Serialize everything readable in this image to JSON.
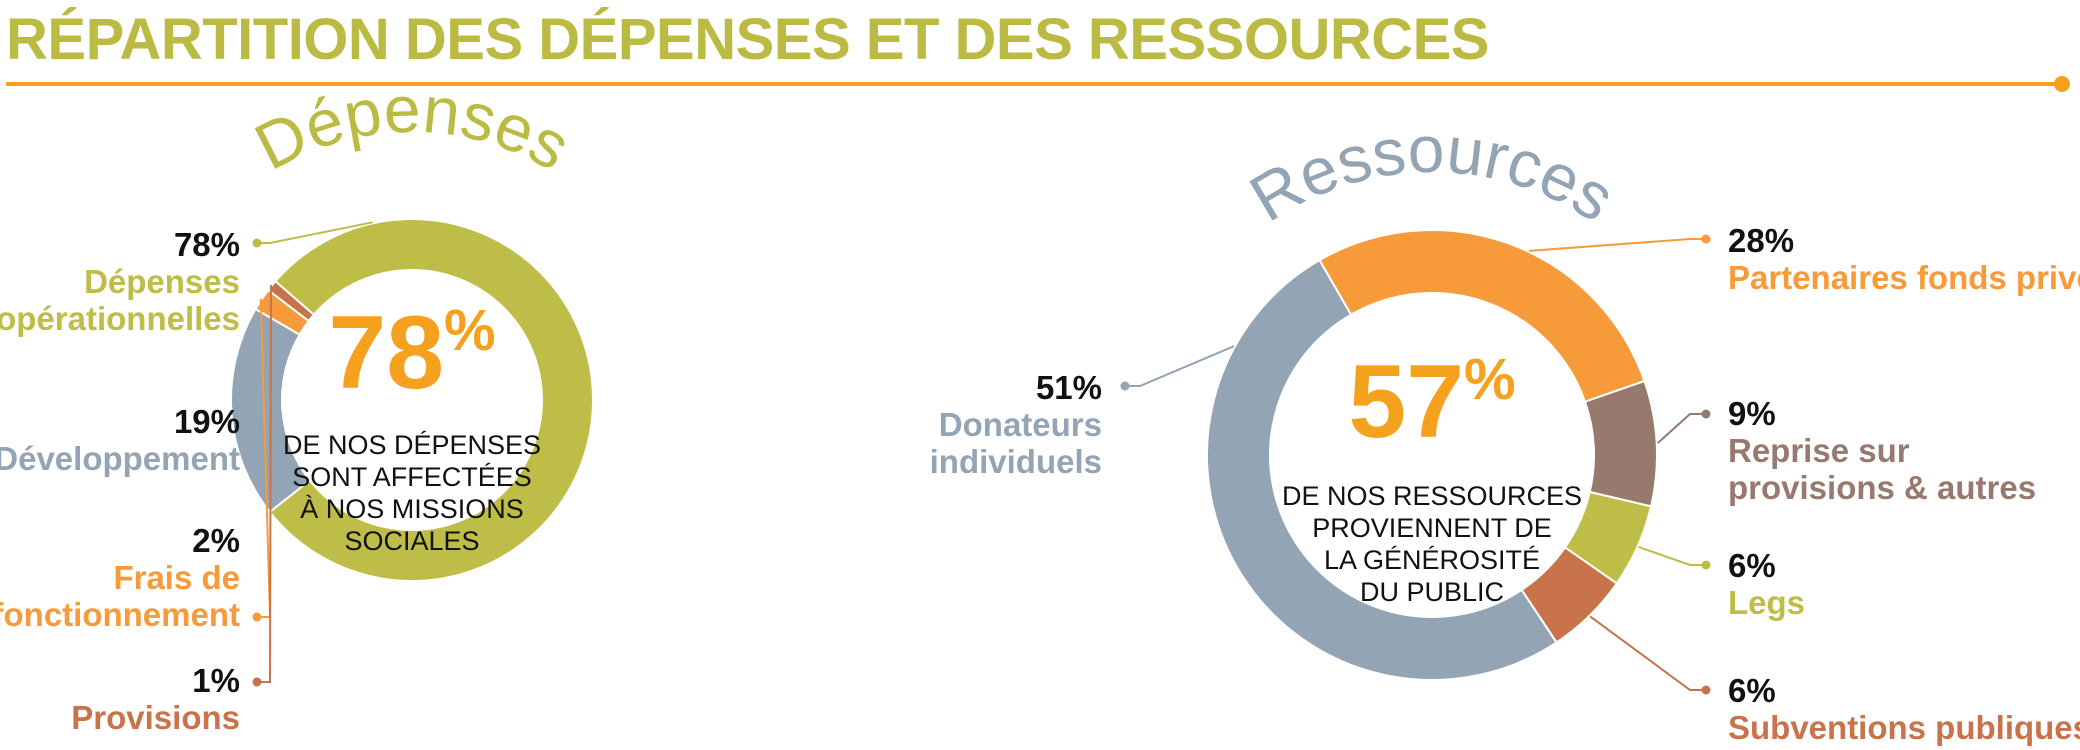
{
  "page": {
    "title": "RÉPARTITION DES DÉPENSES ET DES RESSOURCES",
    "accent_color": "#f5a11e",
    "title_color": "#bbbb44"
  },
  "chart_data": [
    {
      "type": "pie",
      "donut": true,
      "title": "Dépenses",
      "title_color": "#bbbb44",
      "center": {
        "value": "78",
        "unit": "%",
        "value_color": "#f5a11e",
        "text_lines": [
          "DE NOS DÉPENSES",
          "SONT AFFECTÉES",
          "À NOS MISSIONS",
          "SOCIALES"
        ]
      },
      "slices": [
        {
          "pct_label": "78%",
          "label": "Dépenses opérationnelles",
          "label_lines": [
            "Dépenses",
            "opérationnelles"
          ],
          "value": 78,
          "color": "#bdbd47"
        },
        {
          "pct_label": "19%",
          "label": "Développement",
          "label_lines": [
            "Développement"
          ],
          "value": 19,
          "color": "#93a4b5"
        },
        {
          "pct_label": "2%",
          "label": "Frais de fonctionnement",
          "label_lines": [
            "Frais de",
            "fonctionnement"
          ],
          "value": 2,
          "color": "#f69a3a"
        },
        {
          "pct_label": "1%",
          "label": "Provisions",
          "label_lines": [
            "Provisions"
          ],
          "value": 1,
          "color": "#c8734a"
        }
      ]
    },
    {
      "type": "pie",
      "donut": true,
      "title": "Ressources",
      "title_color": "#93a4b5",
      "center": {
        "value": "57",
        "unit": "%",
        "value_color": "#f5a11e",
        "text_lines": [
          "DE NOS RESSOURCES",
          "PROVIENNENT DE",
          "LA GÉNÉROSITÉ",
          "DU PUBLIC"
        ]
      },
      "slices": [
        {
          "pct_label": "28%",
          "label": "Partenaires fonds privés",
          "label_lines": [
            "Partenaires fonds privés"
          ],
          "value": 28,
          "color": "#f69a3a"
        },
        {
          "pct_label": "9%",
          "label": "Reprise sur provisions & autres",
          "label_lines": [
            "Reprise sur",
            "provisions & autres"
          ],
          "value": 9,
          "color": "#98796e"
        },
        {
          "pct_label": "6%",
          "label": "Legs",
          "label_lines": [
            "Legs"
          ],
          "value": 6,
          "color": "#bdbd47"
        },
        {
          "pct_label": "6%",
          "label": "Subventions publiques",
          "label_lines": [
            "Subventions publiques"
          ],
          "value": 6,
          "color": "#c8734a"
        },
        {
          "pct_label": "51%",
          "label": "Donateurs individuels",
          "label_lines": [
            "Donateurs",
            "individuels"
          ],
          "value": 51,
          "color": "#93a4b5"
        }
      ]
    }
  ]
}
